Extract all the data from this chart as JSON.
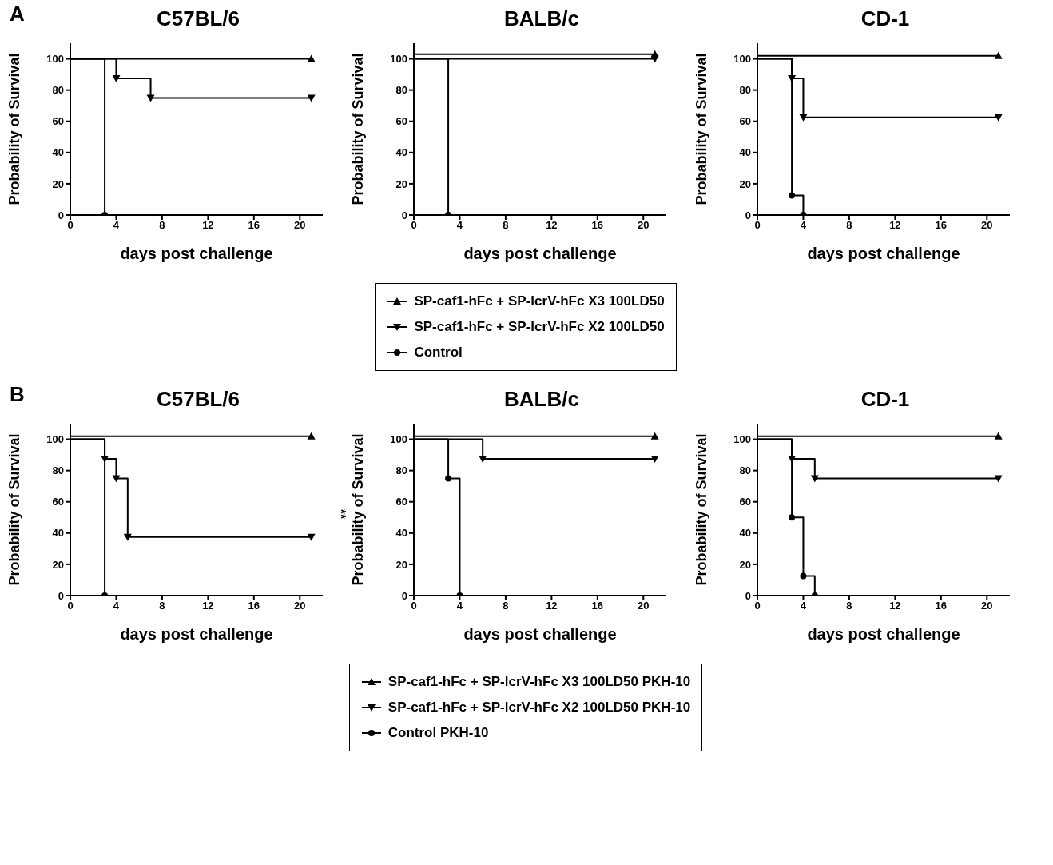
{
  "chart_data": [
    {
      "type": "step",
      "title": "C57BL/6",
      "annotations": [
        "A"
      ],
      "xlabel": "days post challenge",
      "ylabel": "Probability of Survival",
      "xlim": [
        0,
        22
      ],
      "xticks": [
        0,
        4,
        8,
        12,
        16,
        20
      ],
      "ylim": [
        0,
        110
      ],
      "yticks": [
        0,
        20,
        40,
        60,
        80,
        100
      ],
      "grid": false,
      "legend": false,
      "line_style": "solid",
      "series": [
        {
          "color": "#000000",
          "marker": "triangle",
          "x": [
            0,
            21
          ],
          "values": [
            100,
            100
          ]
        },
        {
          "color": "#000000",
          "marker": "triangle-down",
          "x": [
            0,
            4,
            7,
            21
          ],
          "values": [
            100,
            87.5,
            75,
            75
          ]
        },
        {
          "color": "#000000",
          "marker": "circle",
          "x": [
            0,
            3
          ],
          "values": [
            100,
            0
          ]
        }
      ]
    },
    {
      "type": "step",
      "title": "BALB/c",
      "xlabel": "days post challenge",
      "ylabel": "Probability of Survival",
      "xlim": [
        0,
        22
      ],
      "xticks": [
        0,
        4,
        8,
        12,
        16,
        20
      ],
      "ylim": [
        0,
        110
      ],
      "yticks": [
        0,
        20,
        40,
        60,
        80,
        100
      ],
      "grid": false,
      "legend": "bottom",
      "line_style": "solid",
      "series": [
        {
          "name": "SP-caf1-hFc + SP-lcrV-hFc X3 100LD50",
          "color": "#000000",
          "marker": "triangle",
          "x": [
            0,
            21
          ],
          "values": [
            103,
            103
          ]
        },
        {
          "name": "SP-caf1-hFc + SP-lcrV-hFc X2 100LD50",
          "color": "#000000",
          "marker": "triangle-down",
          "x": [
            0,
            21
          ],
          "values": [
            100,
            100
          ]
        },
        {
          "name": "Control",
          "color": "#000000",
          "marker": "circle",
          "x": [
            0,
            3
          ],
          "values": [
            100,
            0
          ]
        }
      ]
    },
    {
      "type": "step",
      "title": "CD-1",
      "xlabel": "days post challenge",
      "ylabel": "Probability of Survival",
      "xlim": [
        0,
        22
      ],
      "xticks": [
        0,
        4,
        8,
        12,
        16,
        20
      ],
      "ylim": [
        0,
        110
      ],
      "yticks": [
        0,
        20,
        40,
        60,
        80,
        100
      ],
      "grid": false,
      "legend": false,
      "line_style": "solid",
      "series": [
        {
          "color": "#000000",
          "marker": "triangle",
          "x": [
            0,
            21
          ],
          "values": [
            102,
            102
          ]
        },
        {
          "color": "#000000",
          "marker": "triangle-down",
          "x": [
            0,
            3,
            4,
            21
          ],
          "values": [
            100,
            87.5,
            62.5,
            62.5
          ]
        },
        {
          "color": "#000000",
          "marker": "circle",
          "x": [
            0,
            3,
            4
          ],
          "values": [
            100,
            12.5,
            0
          ]
        }
      ]
    },
    {
      "type": "step",
      "title": "C57BL/6",
      "annotations": [
        "B",
        "**"
      ],
      "xlabel": "days post challenge",
      "ylabel": "Probability of Survival",
      "xlim": [
        0,
        22
      ],
      "xticks": [
        0,
        4,
        8,
        12,
        16,
        20
      ],
      "ylim": [
        0,
        110
      ],
      "yticks": [
        0,
        20,
        40,
        60,
        80,
        100
      ],
      "grid": false,
      "legend": false,
      "line_style": "solid",
      "series": [
        {
          "color": "#000000",
          "marker": "triangle",
          "x": [
            0,
            21
          ],
          "values": [
            102,
            102
          ]
        },
        {
          "color": "#000000",
          "marker": "triangle-down",
          "x": [
            0,
            3,
            4,
            5,
            21
          ],
          "values": [
            100,
            87.5,
            75,
            37.5,
            37.5
          ]
        },
        {
          "color": "#000000",
          "marker": "circle",
          "x": [
            0,
            3
          ],
          "values": [
            100,
            0
          ]
        }
      ]
    },
    {
      "type": "step",
      "title": "BALB/c",
      "xlabel": "days post challenge",
      "ylabel": "Probability of Survival",
      "xlim": [
        0,
        22
      ],
      "xticks": [
        0,
        4,
        8,
        12,
        16,
        20
      ],
      "ylim": [
        0,
        110
      ],
      "yticks": [
        0,
        20,
        40,
        60,
        80,
        100
      ],
      "grid": false,
      "legend": "bottom",
      "line_style": "solid",
      "series": [
        {
          "name": "SP-caf1-hFc + SP-lcrV-hFc X3 100LD50 PKH-10",
          "color": "#000000",
          "marker": "triangle",
          "x": [
            0,
            21
          ],
          "values": [
            102,
            102
          ]
        },
        {
          "name": "SP-caf1-hFc + SP-lcrV-hFc X2 100LD50 PKH-10",
          "color": "#000000",
          "marker": "triangle-down",
          "x": [
            0,
            6,
            21
          ],
          "values": [
            100,
            87.5,
            87.5
          ]
        },
        {
          "name": "Control PKH-10",
          "color": "#000000",
          "marker": "circle",
          "x": [
            0,
            3,
            4
          ],
          "values": [
            100,
            75,
            0
          ]
        }
      ]
    },
    {
      "type": "step",
      "title": "CD-1",
      "xlabel": "days post challenge",
      "ylabel": "Probability of Survival",
      "xlim": [
        0,
        22
      ],
      "xticks": [
        0,
        4,
        8,
        12,
        16,
        20
      ],
      "ylim": [
        0,
        110
      ],
      "yticks": [
        0,
        20,
        40,
        60,
        80,
        100
      ],
      "grid": false,
      "legend": false,
      "line_style": "solid",
      "series": [
        {
          "color": "#000000",
          "marker": "triangle",
          "x": [
            0,
            21
          ],
          "values": [
            102,
            102
          ]
        },
        {
          "color": "#000000",
          "marker": "triangle-down",
          "x": [
            0,
            3,
            5,
            21
          ],
          "values": [
            100,
            87.5,
            75,
            75
          ]
        },
        {
          "color": "#000000",
          "marker": "circle",
          "x": [
            0,
            3,
            4,
            5
          ],
          "values": [
            100,
            50,
            12.5,
            0
          ]
        }
      ]
    }
  ]
}
